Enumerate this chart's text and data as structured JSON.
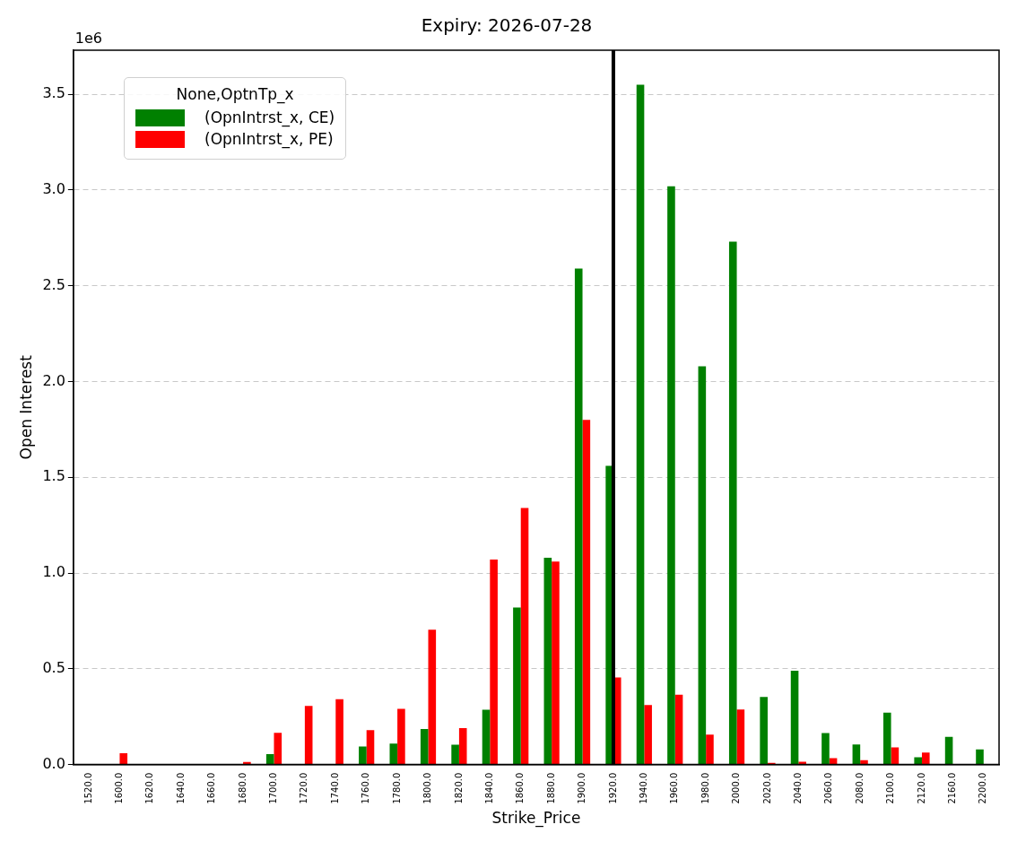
{
  "chart_data": {
    "type": "bar",
    "title": "Expiry: 2026-07-28",
    "xlabel": "Strike_Price",
    "ylabel": "Open Interest",
    "legend_title": "None,OptnTp_x",
    "annotations": [
      "1e6"
    ],
    "categories": [
      "1520.0",
      "1600.0",
      "1620.0",
      "1640.0",
      "1660.0",
      "1680.0",
      "1700.0",
      "1720.0",
      "1740.0",
      "1760.0",
      "1780.0",
      "1800.0",
      "1820.0",
      "1840.0",
      "1860.0",
      "1880.0",
      "1900.0",
      "1920.0",
      "1940.0",
      "1960.0",
      "1980.0",
      "2000.0",
      "2020.0",
      "2040.0",
      "2060.0",
      "2080.0",
      "2100.0",
      "2120.0",
      "2160.0",
      "2200.0"
    ],
    "series": [
      {
        "name": "(OpnIntrst_x, CE)",
        "color": "#008000",
        "values": [
          0,
          0,
          0,
          0,
          0,
          0,
          0.054,
          0,
          0,
          0.094,
          0.109,
          0.185,
          0.104,
          0.286,
          0.82,
          1.08,
          2.59,
          1.56,
          3.55,
          3.02,
          2.08,
          2.73,
          0.353,
          0.49,
          0.164,
          0.105,
          0.271,
          0.038,
          0.145,
          0.079
        ]
      },
      {
        "name": "(OpnIntrst_x, PE)",
        "color": "#ff0000",
        "values": [
          0,
          0.059,
          0,
          0,
          0,
          0.013,
          0.165,
          0.306,
          0.341,
          0.18,
          0.291,
          0.704,
          0.19,
          1.07,
          1.34,
          1.06,
          1.8,
          0.455,
          0.311,
          0.364,
          0.156,
          0.287,
          0.009,
          0.014,
          0.033,
          0.023,
          0.089,
          0.063,
          0,
          0
        ]
      }
    ],
    "ylim": [
      0,
      3.73
    ],
    "yticks": [
      {
        "value": 0,
        "label": "0.0"
      },
      0.5,
      {
        "value": 1,
        "label": "1.0"
      },
      1.5,
      {
        "value": 2,
        "label": "2.0"
      },
      2.5,
      {
        "value": 3,
        "label": "3.0"
      },
      3.5
    ],
    "ref_lines": [
      {
        "axis": "x",
        "value": "1920.0",
        "color": "#000000"
      }
    ],
    "grid": "y",
    "legend": "top left"
  }
}
